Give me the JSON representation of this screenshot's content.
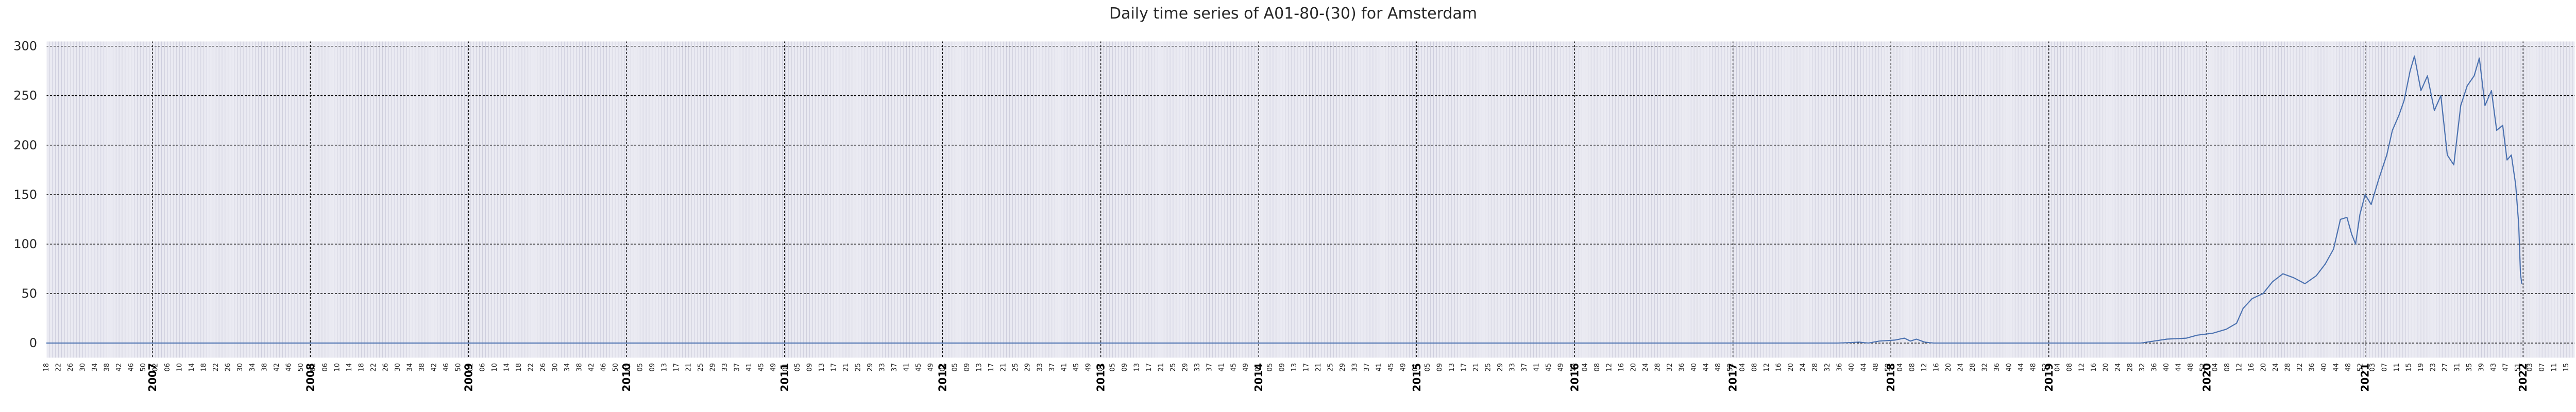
{
  "chart_data": {
    "type": "line",
    "title": "Daily time series of A01-80-(30) for Amsterdam",
    "xlabel": "",
    "ylabel": "",
    "x_range": [
      "2006-05-01",
      "2022-05-01"
    ],
    "ylim": [
      -15,
      305
    ],
    "y_ticks": [
      0,
      50,
      100,
      150,
      200,
      250,
      300
    ],
    "x_major_ticks": [
      "2007",
      "2008",
      "2009",
      "2010",
      "2011",
      "2012",
      "2013",
      "2014",
      "2015",
      "2016",
      "2017",
      "2018",
      "2019",
      "2020",
      "2021",
      "2022"
    ],
    "x_minor_tick_labels": "ISO week numbers (every 4th week shown)",
    "grid": true,
    "legend": "none",
    "colors": {
      "line": "#4c72b0",
      "plot_background": "#eaeaf2",
      "major_grid": "#000000",
      "minor_grid": "#c8c8d8"
    },
    "series": [
      {
        "points": [
          [
            "2006-05-01",
            0
          ],
          [
            "2017-09-01",
            0
          ],
          [
            "2017-10-20",
            1
          ],
          [
            "2017-11-10",
            0
          ],
          [
            "2017-12-05",
            2
          ],
          [
            "2018-01-10",
            3
          ],
          [
            "2018-02-01",
            5
          ],
          [
            "2018-02-15",
            2
          ],
          [
            "2018-03-01",
            4
          ],
          [
            "2018-03-20",
            1
          ],
          [
            "2018-04-10",
            0
          ],
          [
            "2019-08-01",
            0
          ],
          [
            "2019-09-01",
            2
          ],
          [
            "2019-10-01",
            4
          ],
          [
            "2019-11-15",
            5
          ],
          [
            "2019-12-10",
            8
          ],
          [
            "2020-01-15",
            10
          ],
          [
            "2020-02-15",
            14
          ],
          [
            "2020-03-10",
            20
          ],
          [
            "2020-03-25",
            35
          ],
          [
            "2020-04-15",
            45
          ],
          [
            "2020-05-10",
            50
          ],
          [
            "2020-06-01",
            62
          ],
          [
            "2020-06-25",
            70
          ],
          [
            "2020-07-20",
            66
          ],
          [
            "2020-08-15",
            60
          ],
          [
            "2020-09-10",
            68
          ],
          [
            "2020-10-01",
            80
          ],
          [
            "2020-10-20",
            95
          ],
          [
            "2020-11-05",
            125
          ],
          [
            "2020-11-20",
            127
          ],
          [
            "2020-12-01",
            110
          ],
          [
            "2020-12-10",
            100
          ],
          [
            "2020-12-20",
            130
          ],
          [
            "2021-01-01",
            150
          ],
          [
            "2021-01-15",
            140
          ],
          [
            "2021-02-01",
            165
          ],
          [
            "2021-02-20",
            190
          ],
          [
            "2021-03-05",
            215
          ],
          [
            "2021-03-20",
            230
          ],
          [
            "2021-04-01",
            245
          ],
          [
            "2021-04-15",
            275
          ],
          [
            "2021-04-25",
            290
          ],
          [
            "2021-05-10",
            255
          ],
          [
            "2021-05-25",
            270
          ],
          [
            "2021-06-10",
            235
          ],
          [
            "2021-06-25",
            250
          ],
          [
            "2021-07-10",
            190
          ],
          [
            "2021-07-25",
            180
          ],
          [
            "2021-08-10",
            240
          ],
          [
            "2021-08-25",
            260
          ],
          [
            "2021-09-10",
            270
          ],
          [
            "2021-09-22",
            288
          ],
          [
            "2021-10-05",
            240
          ],
          [
            "2021-10-20",
            255
          ],
          [
            "2021-11-01",
            215
          ],
          [
            "2021-11-15",
            220
          ],
          [
            "2021-11-25",
            185
          ],
          [
            "2021-12-05",
            190
          ],
          [
            "2021-12-15",
            160
          ],
          [
            "2021-12-22",
            120
          ],
          [
            "2021-12-26",
            70
          ],
          [
            "2021-12-29",
            60
          ]
        ]
      }
    ]
  }
}
